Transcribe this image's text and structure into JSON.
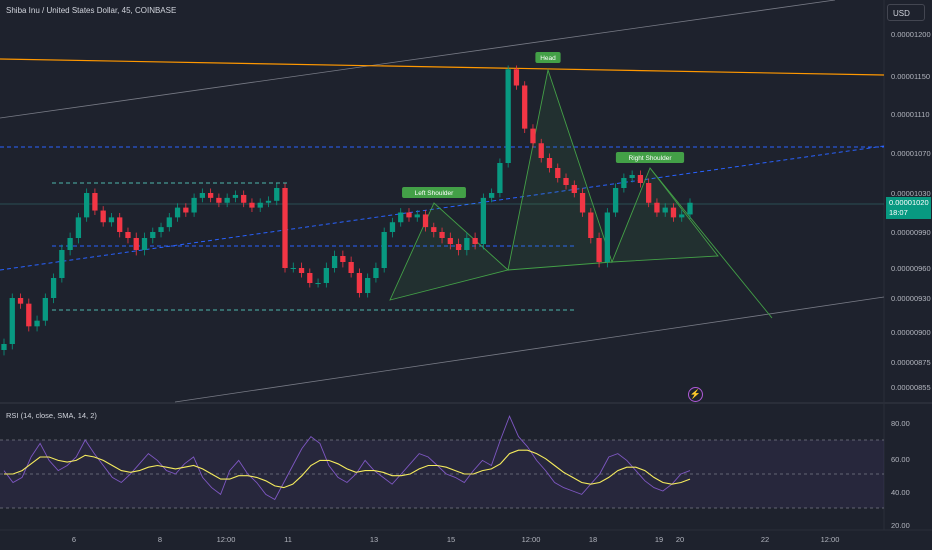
{
  "header": {
    "title": "Shiba Inu / United States Dollar, 45, COINBASE"
  },
  "currency": "USD",
  "rsi_title": "RSI (14, close, SMA, 14, 2)",
  "last_price": {
    "value": "0.00001020",
    "countdown": "18:07"
  },
  "colors": {
    "background": "#1e222d",
    "up": "#089981",
    "down": "#f23645",
    "rsi": "#7e57c2",
    "rsi_ma": "#f5eb5d",
    "resistance": "#ff9800",
    "pattern": "#43a047",
    "dashed_blue": "#2962ff",
    "dashed_teal": "#4db6ac"
  },
  "chart_data": [
    {
      "type": "candlestick",
      "title": "Shiba Inu / United States Dollar, 45, COINBASE",
      "y_ticks": [
        "0.00001200",
        "0.00001150",
        "0.00001110",
        "0.00001070",
        "0.00001030",
        "0.00000990",
        "0.00000960",
        "0.00000930",
        "0.00000900",
        "0.00000875",
        "0.00000855"
      ],
      "x_ticks": [
        "6",
        "8",
        "12:00",
        "11",
        "13",
        "15",
        "12:00",
        "18",
        "19",
        "20",
        "22",
        "12:00"
      ],
      "y_range": [
        8.5e-06,
        1.22e-05
      ],
      "annotations": [
        "Head",
        "Left Shoulder",
        "Right Shoulder"
      ],
      "last_price": 1.02e-05,
      "series": [
        {
          "values": [
            8.9e-06,
            9.3e-06,
            9.25e-06,
            9.05e-06,
            9.1e-06,
            9.3e-06,
            9.5e-06,
            9.75e-06,
            9.85e-06,
            1.005e-05,
            1.03e-05,
            1.012e-05,
            1e-05,
            1.005e-05,
            9.9e-06,
            9.85e-06,
            9.75e-06,
            9.85e-06,
            9.9e-06,
            9.95e-06,
            1.005e-05,
            1.015e-05,
            1.01e-05,
            1.025e-05,
            1.03e-05,
            1.025e-05,
            1.02e-05,
            1.025e-05,
            1.028e-05,
            1.02e-05,
            1.015e-05,
            1.02e-05,
            1.022e-05,
            1.035e-05,
            9.6e-06,
            9.6e-06,
            9.55e-06,
            9.45e-06,
            9.45e-06,
            9.6e-06,
            9.7e-06,
            9.65e-06,
            9.55e-06,
            9.35e-06,
            9.5e-06,
            9.6e-06,
            9.9e-06,
            1e-05,
            1.01e-05,
            1.005e-05,
            1.008e-05,
            9.95e-06,
            9.9e-06,
            9.85e-06,
            9.8e-06,
            9.75e-06,
            9.85e-06,
            9.8e-06,
            1.025e-05,
            1.03e-05,
            1.06e-05,
            1.158e-05,
            1.14e-05,
            1.095e-05,
            1.08e-05,
            1.065e-05,
            1.055e-05,
            1.045e-05,
            1.038e-05,
            1.03e-05,
            1.01e-05,
            9.85e-06,
            9.65e-06,
            1.01e-05,
            1.035e-05,
            1.045e-05,
            1.048e-05,
            1.04e-05,
            1.02e-05,
            1.01e-05,
            1.015e-05,
            1.005e-05,
            1.008e-05,
            1.02e-05
          ]
        }
      ]
    },
    {
      "type": "line",
      "title": "RSI (14, close, SMA, 14, 2)",
      "y_ticks": [
        "80.00",
        "60.00",
        "40.00",
        "20.00"
      ],
      "y_range": [
        15,
        90
      ],
      "bands": [
        30,
        50,
        70
      ],
      "series": [
        {
          "name": "RSI",
          "values": [
            52,
            45,
            48,
            60,
            68,
            58,
            52,
            55,
            60,
            70,
            62,
            55,
            48,
            45,
            50,
            56,
            62,
            58,
            52,
            50,
            56,
            60,
            48,
            42,
            38,
            52,
            58,
            50,
            45,
            38,
            35,
            45,
            55,
            65,
            72,
            68,
            55,
            48,
            45,
            50,
            58,
            52,
            48,
            44,
            50,
            56,
            62,
            60,
            55,
            50,
            48,
            45,
            52,
            58,
            55,
            70,
            84,
            72,
            66,
            58,
            52,
            45,
            42,
            40,
            38,
            44,
            50,
            60,
            62,
            58,
            52,
            46,
            42,
            40,
            44,
            50,
            52
          ]
        },
        {
          "name": "RSI-based MA",
          "values": [
            50,
            50,
            52,
            56,
            60,
            60,
            58,
            57,
            58,
            61,
            60,
            58,
            55,
            52,
            51,
            52,
            54,
            55,
            54,
            53,
            54,
            55,
            53,
            50,
            47,
            47,
            49,
            49,
            48,
            46,
            43,
            42,
            44,
            49,
            55,
            58,
            58,
            56,
            53,
            51,
            52,
            52,
            51,
            49,
            49,
            50,
            53,
            55,
            55,
            54,
            52,
            50,
            50,
            52,
            53,
            56,
            62,
            64,
            64,
            62,
            59,
            55,
            51,
            48,
            45,
            44,
            45,
            48,
            52,
            54,
            54,
            52,
            48,
            45,
            44,
            45,
            47
          ]
        }
      ]
    }
  ]
}
